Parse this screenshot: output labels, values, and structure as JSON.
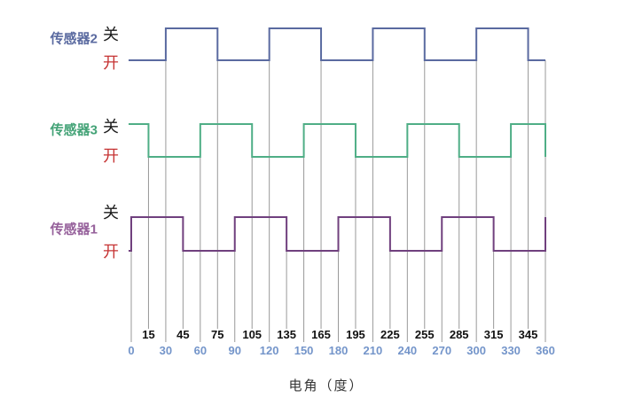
{
  "labels": {
    "off": "关",
    "on": "开"
  },
  "chart_data": {
    "type": "line",
    "subtype": "digital-timing-waveforms",
    "title": "",
    "xlabel": "电角（度）",
    "x_range": [
      0,
      360
    ],
    "x_major_ticks": [
      0,
      30,
      60,
      90,
      120,
      150,
      180,
      210,
      240,
      270,
      300,
      330,
      360
    ],
    "x_mid_ticks": [
      15,
      45,
      75,
      105,
      135,
      165,
      195,
      225,
      255,
      285,
      315,
      345
    ],
    "x_major_tick_color": "#7495ca",
    "x_mid_tick_color": "#111111",
    "grid_color": "#999999",
    "on_label_color": "#c63434",
    "off_label_color": "#1a1a1a",
    "high_means": "关",
    "low_means": "开",
    "series": [
      {
        "name": "传感器2",
        "color": "#5a6aa0",
        "label_color": "#5a6aa0",
        "initial": "low",
        "transitions": [
          30,
          75,
          120,
          165,
          210,
          255,
          300,
          345
        ],
        "extra_gridlines": [
          360
        ]
      },
      {
        "name": "传感器3",
        "color": "#4fae86",
        "label_color": "#44a377",
        "initial": "high",
        "transitions": [
          15,
          60,
          105,
          150,
          195,
          240,
          285,
          330,
          360
        ],
        "extra_gridlines": []
      },
      {
        "name": "传感器1",
        "color": "#70407e",
        "label_color": "#96619b",
        "initial": "low",
        "transitions": [
          0,
          45,
          90,
          135,
          180,
          225,
          270,
          315,
          360
        ],
        "extra_gridlines": []
      }
    ]
  }
}
